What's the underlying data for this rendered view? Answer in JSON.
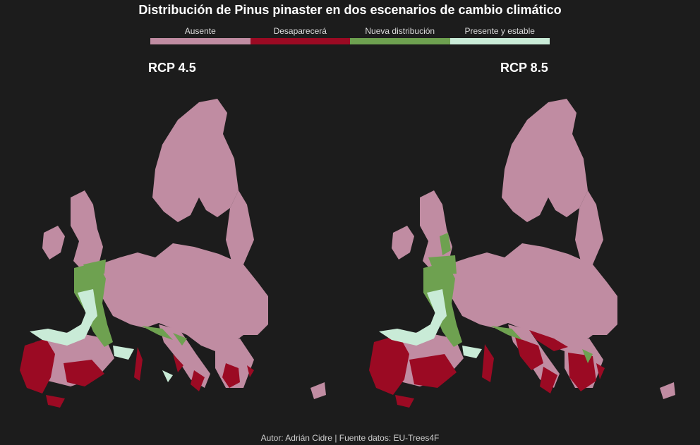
{
  "title": "Distribución de Pinus pinaster en dos escenarios de cambio climático",
  "legend": [
    {
      "label": "Ausente",
      "color": "#c08ca2"
    },
    {
      "label": "Desaparecerá",
      "color": "#9b0a23"
    },
    {
      "label": "Nueva distribución",
      "color": "#6ea150"
    },
    {
      "label": "Presente y estable",
      "color": "#c9ebd7"
    }
  ],
  "panels": [
    {
      "label": "RCP 4.5"
    },
    {
      "label": "RCP 8.5"
    }
  ],
  "caption": "Autor: Adrián Cidre | Fuente datos: EU-Trees4F",
  "background": "#1c1c1c"
}
